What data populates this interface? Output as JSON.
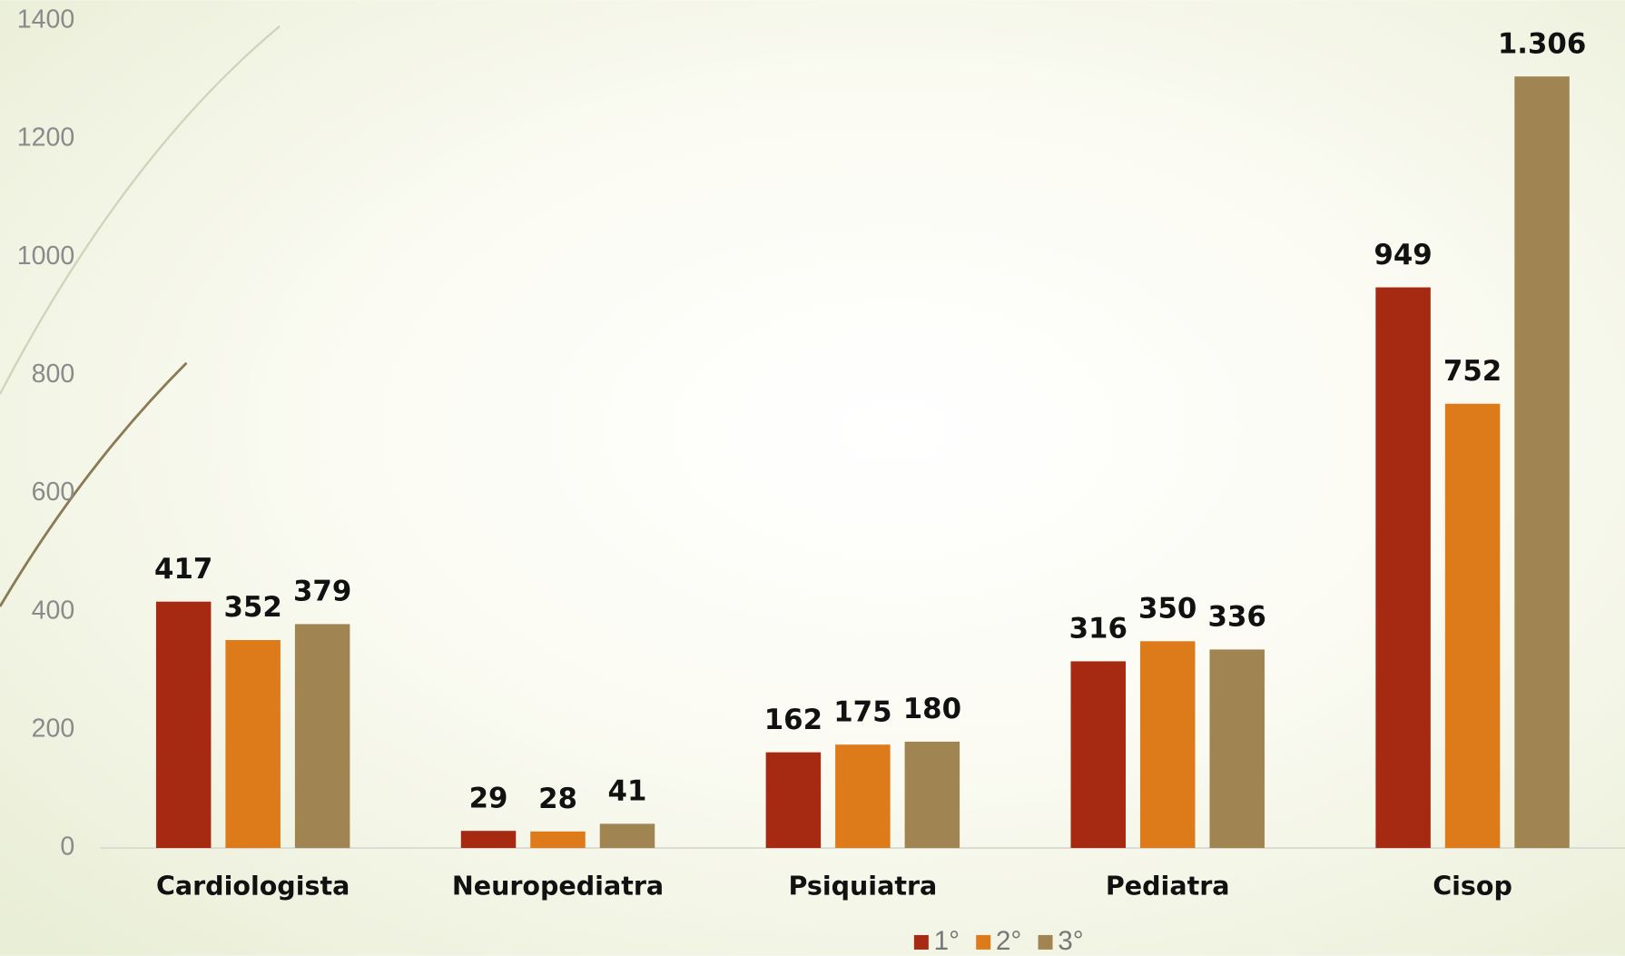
{
  "chart_data": {
    "type": "bar",
    "categories": [
      "Cardiologista",
      "Neuropediatra",
      "Psiquiatra",
      "Pediatra",
      "Cisop"
    ],
    "series": [
      {
        "name": "1°",
        "color": "#a52a11",
        "values": [
          417,
          29,
          162,
          316,
          949
        ]
      },
      {
        "name": "2°",
        "color": "#dd7a1a",
        "values": [
          352,
          28,
          175,
          350,
          752
        ]
      },
      {
        "name": "3°",
        "color": "#a08452",
        "values": [
          379,
          41,
          180,
          336,
          1306
        ],
        "value_labels": [
          "379",
          "41",
          "180",
          "336",
          "1.306"
        ]
      }
    ],
    "ylim": [
      0,
      1400
    ],
    "yticks": [
      0,
      200,
      400,
      600,
      800,
      1000,
      1200,
      1400
    ],
    "grid": false,
    "legend": "bottom"
  }
}
